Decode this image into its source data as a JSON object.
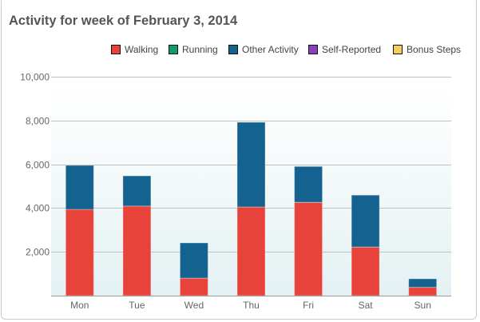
{
  "chart_data": {
    "type": "bar",
    "stacked": true,
    "title": "Activity for week of February 3, 2014",
    "xlabel": "",
    "ylabel": "",
    "ylim": [
      0,
      10000
    ],
    "yticks": [
      2000,
      4000,
      6000,
      8000,
      10000
    ],
    "ytick_labels": [
      "2,000",
      "4,000",
      "6,000",
      "8,000",
      "10,000"
    ],
    "grid": true,
    "legend_position": "top-right",
    "categories": [
      "Mon",
      "Tue",
      "Wed",
      "Thu",
      "Fri",
      "Sat",
      "Sun"
    ],
    "series": [
      {
        "name": "Walking",
        "color": "#e8433a",
        "values": [
          3940,
          4090,
          800,
          4050,
          4260,
          2220,
          380
        ]
      },
      {
        "name": "Running",
        "color": "#0f9b6b",
        "values": [
          0,
          0,
          0,
          0,
          0,
          0,
          0
        ]
      },
      {
        "name": "Other Activity",
        "color": "#14628f",
        "values": [
          2010,
          1380,
          1610,
          3870,
          1640,
          2370,
          390
        ]
      },
      {
        "name": "Self-Reported",
        "color": "#8a3fbf",
        "values": [
          0,
          0,
          0,
          0,
          0,
          0,
          0
        ]
      },
      {
        "name": "Bonus Steps",
        "color": "#f5cc57",
        "values": [
          0,
          0,
          0,
          0,
          0,
          0,
          0
        ]
      }
    ]
  }
}
